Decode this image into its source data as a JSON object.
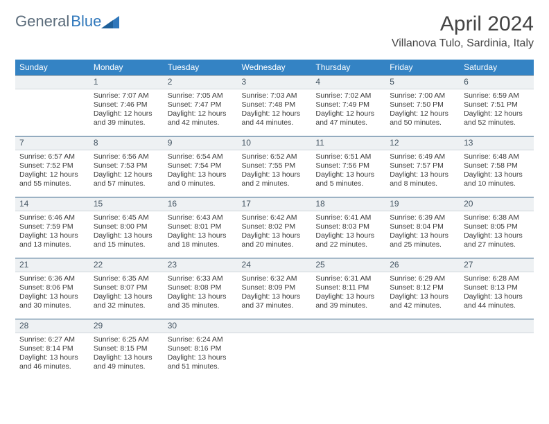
{
  "brand": {
    "part1": "General",
    "part2": "Blue"
  },
  "title": "April 2024",
  "location": "Villanova Tulo, Sardinia, Italy",
  "weekdays": [
    "Sunday",
    "Monday",
    "Tuesday",
    "Wednesday",
    "Thursday",
    "Friday",
    "Saturday"
  ],
  "colors": {
    "header_bg": "#3483c4",
    "header_text": "#ffffff",
    "daynum_bg": "#eef1f3",
    "rule": "#2f5f86",
    "body_text": "#3a3a3a",
    "brand_grey": "#5a6b7a",
    "brand_blue": "#2f77bb"
  },
  "first_weekday_index": 1,
  "days": [
    {
      "n": 1,
      "sunrise": "7:07 AM",
      "sunset": "7:46 PM",
      "daylight": "12 hours and 39 minutes."
    },
    {
      "n": 2,
      "sunrise": "7:05 AM",
      "sunset": "7:47 PM",
      "daylight": "12 hours and 42 minutes."
    },
    {
      "n": 3,
      "sunrise": "7:03 AM",
      "sunset": "7:48 PM",
      "daylight": "12 hours and 44 minutes."
    },
    {
      "n": 4,
      "sunrise": "7:02 AM",
      "sunset": "7:49 PM",
      "daylight": "12 hours and 47 minutes."
    },
    {
      "n": 5,
      "sunrise": "7:00 AM",
      "sunset": "7:50 PM",
      "daylight": "12 hours and 50 minutes."
    },
    {
      "n": 6,
      "sunrise": "6:59 AM",
      "sunset": "7:51 PM",
      "daylight": "12 hours and 52 minutes."
    },
    {
      "n": 7,
      "sunrise": "6:57 AM",
      "sunset": "7:52 PM",
      "daylight": "12 hours and 55 minutes."
    },
    {
      "n": 8,
      "sunrise": "6:56 AM",
      "sunset": "7:53 PM",
      "daylight": "12 hours and 57 minutes."
    },
    {
      "n": 9,
      "sunrise": "6:54 AM",
      "sunset": "7:54 PM",
      "daylight": "13 hours and 0 minutes."
    },
    {
      "n": 10,
      "sunrise": "6:52 AM",
      "sunset": "7:55 PM",
      "daylight": "13 hours and 2 minutes."
    },
    {
      "n": 11,
      "sunrise": "6:51 AM",
      "sunset": "7:56 PM",
      "daylight": "13 hours and 5 minutes."
    },
    {
      "n": 12,
      "sunrise": "6:49 AM",
      "sunset": "7:57 PM",
      "daylight": "13 hours and 8 minutes."
    },
    {
      "n": 13,
      "sunrise": "6:48 AM",
      "sunset": "7:58 PM",
      "daylight": "13 hours and 10 minutes."
    },
    {
      "n": 14,
      "sunrise": "6:46 AM",
      "sunset": "7:59 PM",
      "daylight": "13 hours and 13 minutes."
    },
    {
      "n": 15,
      "sunrise": "6:45 AM",
      "sunset": "8:00 PM",
      "daylight": "13 hours and 15 minutes."
    },
    {
      "n": 16,
      "sunrise": "6:43 AM",
      "sunset": "8:01 PM",
      "daylight": "13 hours and 18 minutes."
    },
    {
      "n": 17,
      "sunrise": "6:42 AM",
      "sunset": "8:02 PM",
      "daylight": "13 hours and 20 minutes."
    },
    {
      "n": 18,
      "sunrise": "6:41 AM",
      "sunset": "8:03 PM",
      "daylight": "13 hours and 22 minutes."
    },
    {
      "n": 19,
      "sunrise": "6:39 AM",
      "sunset": "8:04 PM",
      "daylight": "13 hours and 25 minutes."
    },
    {
      "n": 20,
      "sunrise": "6:38 AM",
      "sunset": "8:05 PM",
      "daylight": "13 hours and 27 minutes."
    },
    {
      "n": 21,
      "sunrise": "6:36 AM",
      "sunset": "8:06 PM",
      "daylight": "13 hours and 30 minutes."
    },
    {
      "n": 22,
      "sunrise": "6:35 AM",
      "sunset": "8:07 PM",
      "daylight": "13 hours and 32 minutes."
    },
    {
      "n": 23,
      "sunrise": "6:33 AM",
      "sunset": "8:08 PM",
      "daylight": "13 hours and 35 minutes."
    },
    {
      "n": 24,
      "sunrise": "6:32 AM",
      "sunset": "8:09 PM",
      "daylight": "13 hours and 37 minutes."
    },
    {
      "n": 25,
      "sunrise": "6:31 AM",
      "sunset": "8:11 PM",
      "daylight": "13 hours and 39 minutes."
    },
    {
      "n": 26,
      "sunrise": "6:29 AM",
      "sunset": "8:12 PM",
      "daylight": "13 hours and 42 minutes."
    },
    {
      "n": 27,
      "sunrise": "6:28 AM",
      "sunset": "8:13 PM",
      "daylight": "13 hours and 44 minutes."
    },
    {
      "n": 28,
      "sunrise": "6:27 AM",
      "sunset": "8:14 PM",
      "daylight": "13 hours and 46 minutes."
    },
    {
      "n": 29,
      "sunrise": "6:25 AM",
      "sunset": "8:15 PM",
      "daylight": "13 hours and 49 minutes."
    },
    {
      "n": 30,
      "sunrise": "6:24 AM",
      "sunset": "8:16 PM",
      "daylight": "13 hours and 51 minutes."
    }
  ],
  "labels": {
    "sunrise": "Sunrise: ",
    "sunset": "Sunset: ",
    "daylight": "Daylight: "
  }
}
